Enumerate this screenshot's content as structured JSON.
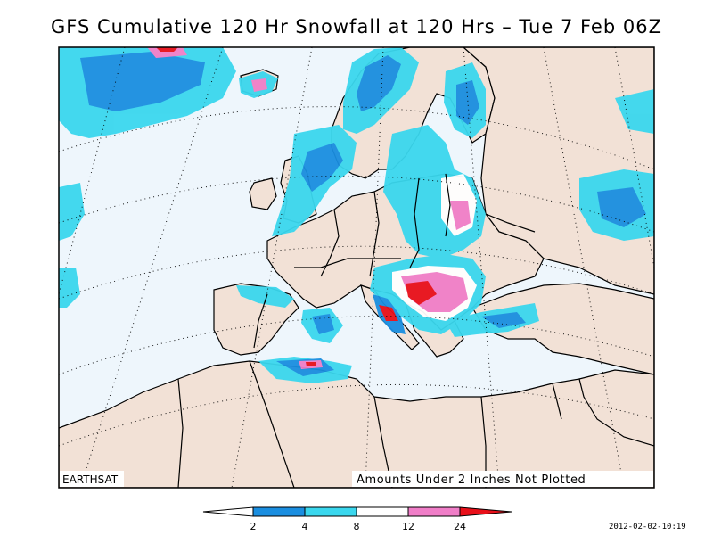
{
  "title": "GFS Cumulative 120 Hr Snowfall at 120 Hrs – Tue 7 Feb 06Z",
  "credit": "EARTHSAT",
  "note": "Amounts Under 2 Inches Not Plotted",
  "timestamp": "2012-02-02-10:19",
  "legend": {
    "ticks": [
      "2",
      "4",
      "8",
      "12",
      "24"
    ],
    "colors": {
      "c0": "#ffffff",
      "c2": "#1a8ee0",
      "c4": "#3ad7ee",
      "c8": "#ffffff",
      "c12": "#f07ec8",
      "c24": "#e8101a"
    }
  },
  "colors": {
    "sea": "#eef6fc",
    "land": "#f2e1d6",
    "border": "#000000"
  }
}
